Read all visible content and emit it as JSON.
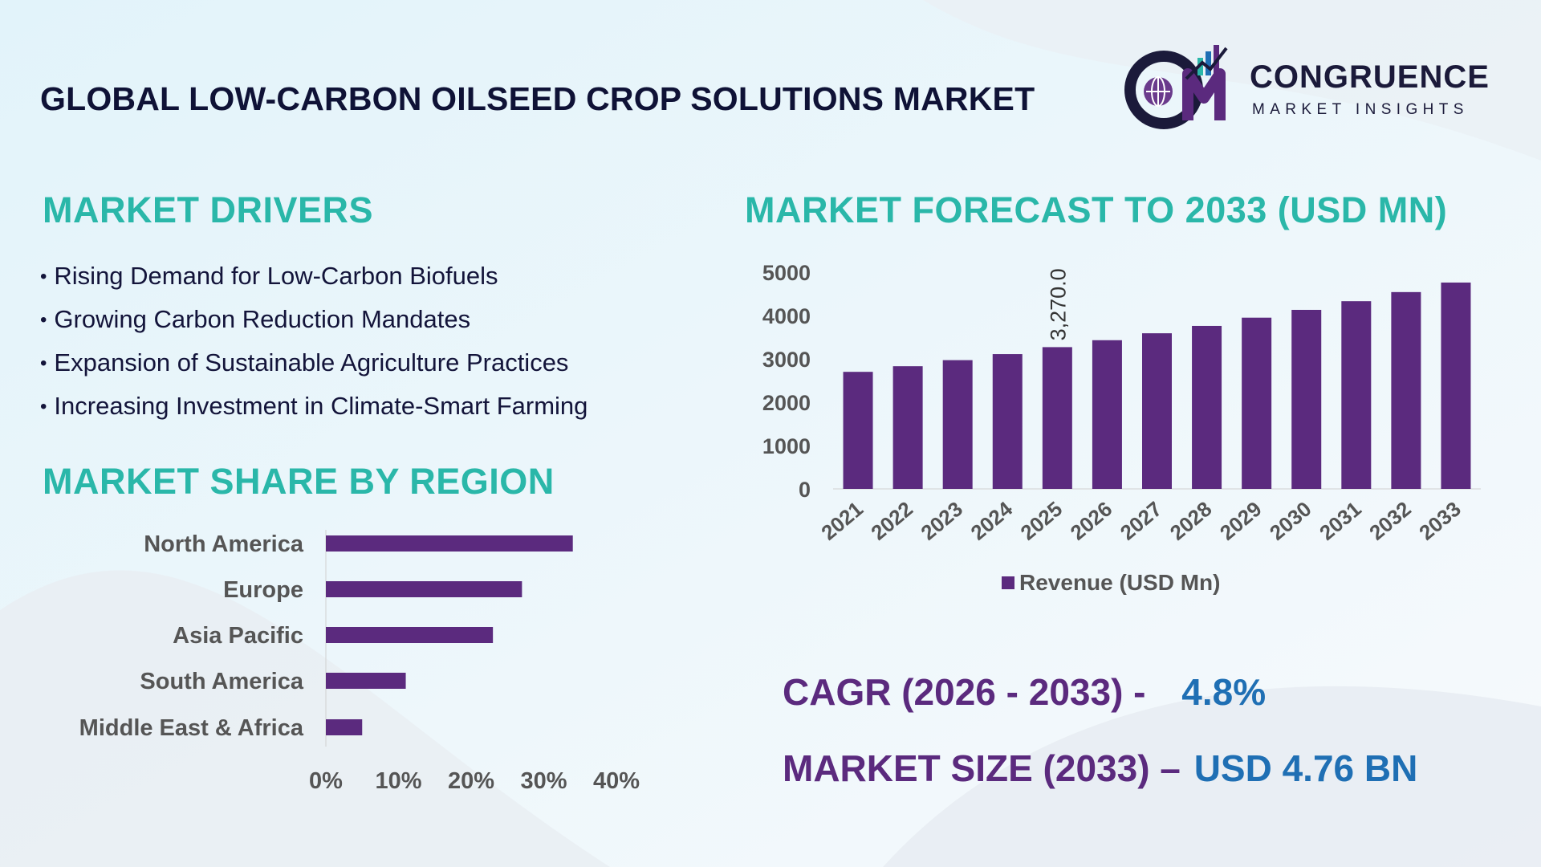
{
  "header": {
    "title": "GLOBAL LOW-CARBON OILSEED CROP SOLUTIONS MARKET",
    "logo_name": "CONGRUENCE",
    "logo_tagline": "MARKET INSIGHTS"
  },
  "drivers": {
    "heading": "MARKET DRIVERS",
    "items": [
      "Rising Demand for Low-Carbon Biofuels",
      "Growing Carbon Reduction Mandates",
      "Expansion of Sustainable Agriculture Practices",
      "Increasing Investment in Climate-Smart Farming"
    ]
  },
  "region": {
    "heading": "MARKET SHARE BY REGION"
  },
  "forecast": {
    "heading": "MARKET FORECAST TO 2033 (USD MN)"
  },
  "kpis": {
    "cagr_label": "CAGR (2026 - 2033) -",
    "cagr_value": "4.8%",
    "size_label": "MARKET SIZE (2033) –",
    "size_value": "USD 4.76 BN"
  },
  "colors": {
    "bar": "#5b2a7e",
    "heading": "#2ab7a9",
    "title": "#0f1236",
    "kpi_value": "#1f6fb4"
  },
  "chart_data": [
    {
      "type": "bar",
      "orientation": "vertical",
      "categories": [
        "2021",
        "2022",
        "2023",
        "2024",
        "2025",
        "2026",
        "2027",
        "2028",
        "2029",
        "2030",
        "2031",
        "2032",
        "2033"
      ],
      "series": [
        {
          "name": "Revenue (USD Mn)",
          "values": [
            2700,
            2830,
            2970,
            3110,
            3270,
            3430,
            3590,
            3760,
            3950,
            4130,
            4330,
            4540,
            4760
          ]
        }
      ],
      "data_labels": [
        {
          "category": "2025",
          "text": "3,270.0"
        }
      ],
      "ylim": [
        0,
        5000
      ],
      "yticks": [
        0,
        1000,
        2000,
        3000,
        4000,
        5000
      ],
      "legend": "bottom",
      "grid": false
    },
    {
      "type": "bar",
      "orientation": "horizontal",
      "categories": [
        "North America",
        "Europe",
        "Asia Pacific",
        "South America",
        "Middle East & Africa"
      ],
      "values": [
        34,
        27,
        23,
        11,
        5
      ],
      "xlim": [
        0,
        40
      ],
      "xticks": [
        "0%",
        "10%",
        "20%",
        "30%",
        "40%"
      ],
      "grid": false
    }
  ]
}
